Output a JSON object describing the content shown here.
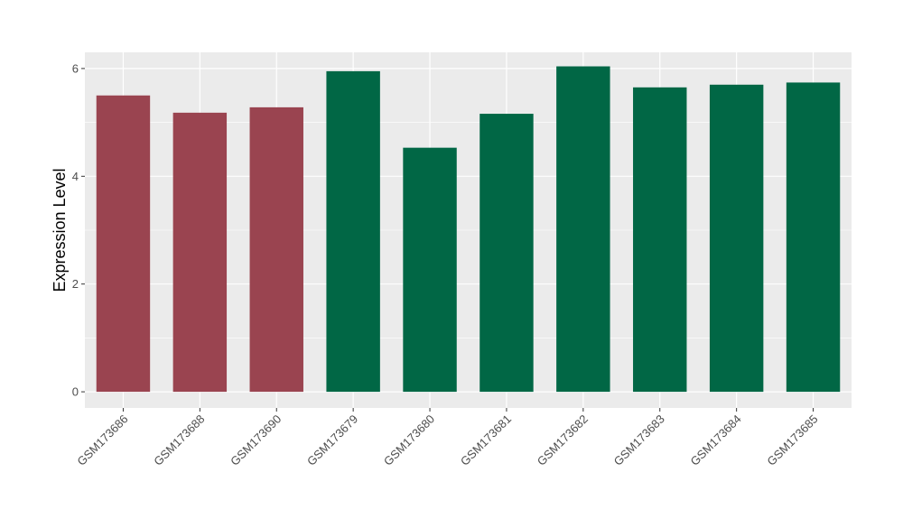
{
  "chart_data": {
    "type": "bar",
    "title": "",
    "xlabel": "",
    "ylabel": "Expression Level",
    "categories": [
      "GSM173686",
      "GSM173688",
      "GSM173690",
      "GSM173679",
      "GSM173680",
      "GSM173681",
      "GSM173682",
      "GSM173683",
      "GSM173684",
      "GSM173685"
    ],
    "values": [
      5.5,
      5.18,
      5.28,
      5.95,
      4.53,
      5.16,
      6.04,
      5.65,
      5.7,
      5.74
    ],
    "bar_colors": [
      "#9a4450",
      "#9a4450",
      "#9a4450",
      "#016745",
      "#016745",
      "#016745",
      "#016745",
      "#016745",
      "#016745",
      "#016745"
    ],
    "ylim": [
      -0.3,
      6.3
    ],
    "y_ticks": [
      0,
      2,
      4,
      6
    ],
    "y_tick_labels": [
      "0",
      "2",
      "4",
      "6"
    ],
    "grid": true,
    "panel_background": "#ebebeb",
    "grid_color": "#ffffff"
  }
}
